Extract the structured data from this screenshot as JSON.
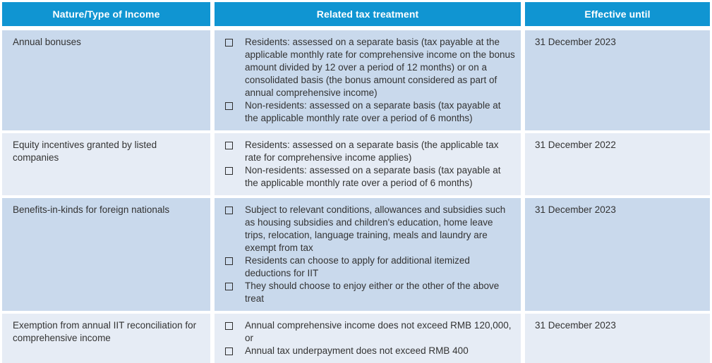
{
  "colors": {
    "header_bg": "#1095D2",
    "header_text": "#FFFFFF",
    "row_odd_bg": "#C9D9EC",
    "row_even_bg": "#E6ECF5",
    "body_text": "#333333"
  },
  "table": {
    "headers": [
      "Nature/Type of Income",
      "Related tax treatment",
      "Effective until"
    ],
    "rows": [
      {
        "income": "Annual bonuses",
        "treatments": [
          "Residents: assessed on a separate basis (tax payable at the applicable monthly rate for comprehensive income on the bonus amount divided by 12 over a period of 12 months) or on a consolidated basis (the bonus amount considered as part of annual comprehensive income)",
          "Non-residents: assessed on a separate basis (tax payable at the applicable monthly rate over a period of 6 months)"
        ],
        "effective_until": "31 December 2023"
      },
      {
        "income": "Equity incentives granted by listed companies",
        "treatments": [
          "Residents: assessed on a separate basis (the applicable tax rate for comprehensive income applies)",
          "Non-residents: assessed on a separate basis (tax payable at the applicable monthly rate over a period of 6 months)"
        ],
        "effective_until": "31 December 2022"
      },
      {
        "income": "Benefits-in-kinds for foreign nationals",
        "treatments": [
          "Subject to relevant conditions, allowances and subsidies such as housing subsidies and children's education, home leave trips, relocation, language training, meals and laundry are exempt from tax",
          "Residents can choose to apply for additional itemized deductions for IIT",
          "They should choose to enjoy either or the other of the above treat"
        ],
        "effective_until": "31 December 2023"
      },
      {
        "income": "Exemption from annual IIT reconciliation for comprehensive income",
        "treatments": [
          "Annual comprehensive income does not exceed RMB 120,000, or",
          "Annual tax underpayment does not exceed RMB 400"
        ],
        "effective_until": "31 December 2023"
      }
    ]
  }
}
